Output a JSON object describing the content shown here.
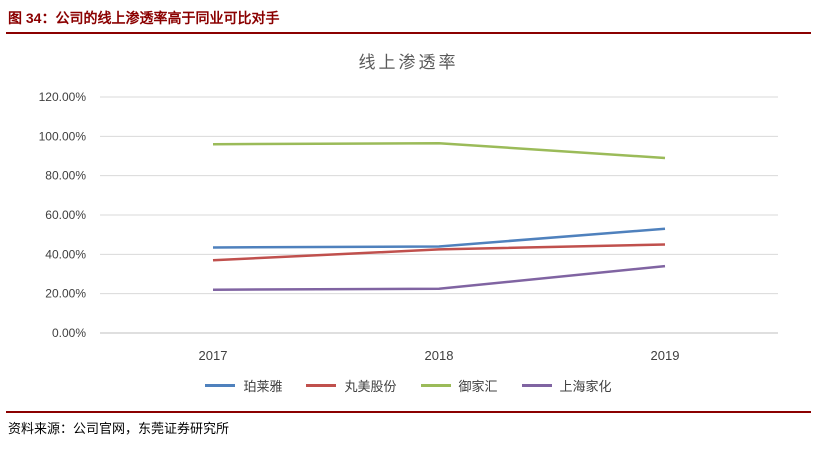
{
  "page": {
    "figure_caption": "图 34：公司的线上渗透率高于同业可比对手",
    "source_note": "资料来源：公司官网，东莞证券研究所",
    "accent_color": "#8b0000"
  },
  "chart_data": {
    "type": "line",
    "title": "线上渗透率",
    "categories": [
      "2017",
      "2018",
      "2019"
    ],
    "series": [
      {
        "id": "proya",
        "name": "珀莱雅",
        "color": "#4f81bd",
        "values": [
          43.5,
          44.0,
          53.0
        ]
      },
      {
        "id": "marubi",
        "name": "丸美股份",
        "color": "#c0504d",
        "values": [
          37.0,
          42.5,
          45.0
        ]
      },
      {
        "id": "yujiahui",
        "name": "御家汇",
        "color": "#9bbb59",
        "values": [
          96.0,
          96.5,
          89.0
        ]
      },
      {
        "id": "shanghai-jahwa",
        "name": "上海家化",
        "color": "#8064a2",
        "values": [
          22.0,
          22.5,
          34.0
        ]
      }
    ],
    "ylim": [
      0,
      120
    ],
    "ytick_step": 20,
    "ytick_decimals": 2,
    "ytick_suffix": "%",
    "grid": true,
    "legend_position": "bottom",
    "grid_color": "#d9d9d9",
    "axis_color": "#bfbfbf",
    "tick_label_color": "#404040"
  }
}
